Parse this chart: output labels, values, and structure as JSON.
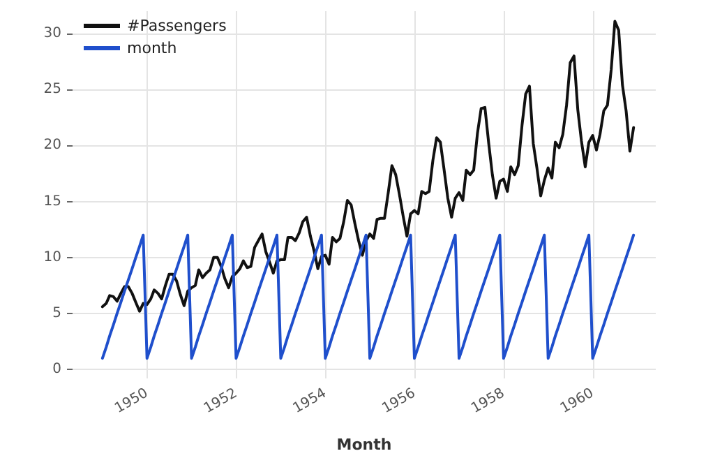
{
  "chart_data": {
    "type": "line",
    "xlabel": "Month",
    "x": [
      "1949-01",
      "1949-02",
      "1949-03",
      "1949-04",
      "1949-05",
      "1949-06",
      "1949-07",
      "1949-08",
      "1949-09",
      "1949-10",
      "1949-11",
      "1949-12",
      "1950-01",
      "1950-02",
      "1950-03",
      "1950-04",
      "1950-05",
      "1950-06",
      "1950-07",
      "1950-08",
      "1950-09",
      "1950-10",
      "1950-11",
      "1950-12",
      "1951-01",
      "1951-02",
      "1951-03",
      "1951-04",
      "1951-05",
      "1951-06",
      "1951-07",
      "1951-08",
      "1951-09",
      "1951-10",
      "1951-11",
      "1951-12",
      "1952-01",
      "1952-02",
      "1952-03",
      "1952-04",
      "1952-05",
      "1952-06",
      "1952-07",
      "1952-08",
      "1952-09",
      "1952-10",
      "1952-11",
      "1952-12",
      "1953-01",
      "1953-02",
      "1953-03",
      "1953-04",
      "1953-05",
      "1953-06",
      "1953-07",
      "1953-08",
      "1953-09",
      "1953-10",
      "1953-11",
      "1953-12",
      "1954-01",
      "1954-02",
      "1954-03",
      "1954-04",
      "1954-05",
      "1954-06",
      "1954-07",
      "1954-08",
      "1954-09",
      "1954-10",
      "1954-11",
      "1954-12",
      "1955-01",
      "1955-02",
      "1955-03",
      "1955-04",
      "1955-05",
      "1955-06",
      "1955-07",
      "1955-08",
      "1955-09",
      "1955-10",
      "1955-11",
      "1955-12",
      "1956-01",
      "1956-02",
      "1956-03",
      "1956-04",
      "1956-05",
      "1956-06",
      "1956-07",
      "1956-08",
      "1956-09",
      "1956-10",
      "1956-11",
      "1956-12",
      "1957-01",
      "1957-02",
      "1957-03",
      "1957-04",
      "1957-05",
      "1957-06",
      "1957-07",
      "1957-08",
      "1957-09",
      "1957-10",
      "1957-11",
      "1957-12",
      "1958-01",
      "1958-02",
      "1958-03",
      "1958-04",
      "1958-05",
      "1958-06",
      "1958-07",
      "1958-08",
      "1958-09",
      "1958-10",
      "1958-11",
      "1958-12",
      "1959-01",
      "1959-02",
      "1959-03",
      "1959-04",
      "1959-05",
      "1959-06",
      "1959-07",
      "1959-08",
      "1959-09",
      "1959-10",
      "1959-11",
      "1959-12",
      "1960-01",
      "1960-02",
      "1960-03",
      "1960-04",
      "1960-05",
      "1960-06",
      "1960-07",
      "1960-08",
      "1960-09",
      "1960-10",
      "1960-11",
      "1960-12"
    ],
    "series": [
      {
        "name": "#Passengers",
        "color": "#111111",
        "values": [
          5.6,
          5.9,
          6.6,
          6.5,
          6.1,
          6.8,
          7.4,
          7.4,
          6.8,
          6.0,
          5.2,
          5.9,
          5.8,
          6.3,
          7.1,
          6.8,
          6.3,
          7.5,
          8.5,
          8.5,
          7.9,
          6.7,
          5.7,
          7.0,
          7.3,
          7.5,
          8.9,
          8.2,
          8.6,
          8.9,
          10.0,
          10.0,
          9.2,
          8.1,
          7.3,
          8.3,
          8.6,
          9.0,
          9.7,
          9.1,
          9.2,
          10.9,
          11.5,
          12.1,
          10.5,
          9.6,
          8.6,
          9.7,
          9.8,
          9.8,
          11.8,
          11.8,
          11.5,
          12.2,
          13.2,
          13.6,
          11.9,
          10.6,
          9.0,
          10.1,
          10.2,
          9.4,
          11.8,
          11.4,
          11.7,
          13.2,
          15.1,
          14.7,
          13.0,
          11.5,
          10.2,
          11.5,
          12.1,
          11.7,
          13.4,
          13.5,
          13.5,
          15.8,
          18.2,
          17.4,
          15.6,
          13.7,
          11.9,
          13.9,
          14.2,
          13.9,
          15.9,
          15.7,
          15.9,
          18.7,
          20.7,
          20.3,
          17.8,
          15.3,
          13.6,
          15.3,
          15.8,
          15.1,
          17.8,
          17.4,
          17.8,
          21.1,
          23.3,
          23.4,
          20.2,
          17.4,
          15.3,
          16.8,
          17.0,
          15.9,
          18.1,
          17.4,
          18.2,
          21.8,
          24.6,
          25.3,
          20.2,
          18.0,
          15.5,
          16.9,
          18.0,
          17.1,
          20.3,
          19.8,
          21.0,
          23.6,
          27.4,
          28.0,
          23.2,
          20.4,
          18.1,
          20.3,
          20.9,
          19.6,
          21.0,
          23.1,
          23.6,
          26.8,
          31.1,
          30.3,
          25.4,
          23.1,
          19.5,
          21.6
        ]
      },
      {
        "name": "month",
        "color": "#1f4fcc",
        "values": [
          1,
          2,
          3,
          4,
          5,
          6,
          7,
          8,
          9,
          10,
          11,
          12,
          1,
          2,
          3,
          4,
          5,
          6,
          7,
          8,
          9,
          10,
          11,
          12,
          1,
          2,
          3,
          4,
          5,
          6,
          7,
          8,
          9,
          10,
          11,
          12,
          1,
          2,
          3,
          4,
          5,
          6,
          7,
          8,
          9,
          10,
          11,
          12,
          1,
          2,
          3,
          4,
          5,
          6,
          7,
          8,
          9,
          10,
          11,
          12,
          1,
          2,
          3,
          4,
          5,
          6,
          7,
          8,
          9,
          10,
          11,
          12,
          1,
          2,
          3,
          4,
          5,
          6,
          7,
          8,
          9,
          10,
          11,
          12,
          1,
          2,
          3,
          4,
          5,
          6,
          7,
          8,
          9,
          10,
          11,
          12,
          1,
          2,
          3,
          4,
          5,
          6,
          7,
          8,
          9,
          10,
          11,
          12,
          1,
          2,
          3,
          4,
          5,
          6,
          7,
          8,
          9,
          10,
          11,
          12,
          1,
          2,
          3,
          4,
          5,
          6,
          7,
          8,
          9,
          10,
          11,
          12,
          1,
          2,
          3,
          4,
          5,
          6,
          7,
          8,
          9,
          10,
          11,
          12
        ]
      }
    ],
    "xlim": [
      "1948-05",
      "1961-06"
    ],
    "xticks": [
      "1950",
      "1952",
      "1954",
      "1956",
      "1958",
      "1960"
    ],
    "ylim": [
      -0.8,
      32
    ],
    "yticks": [
      0,
      5,
      10,
      15,
      20,
      25,
      30
    ],
    "grid": true,
    "legend": "top left",
    "marker": "none",
    "line_style": "solid"
  }
}
